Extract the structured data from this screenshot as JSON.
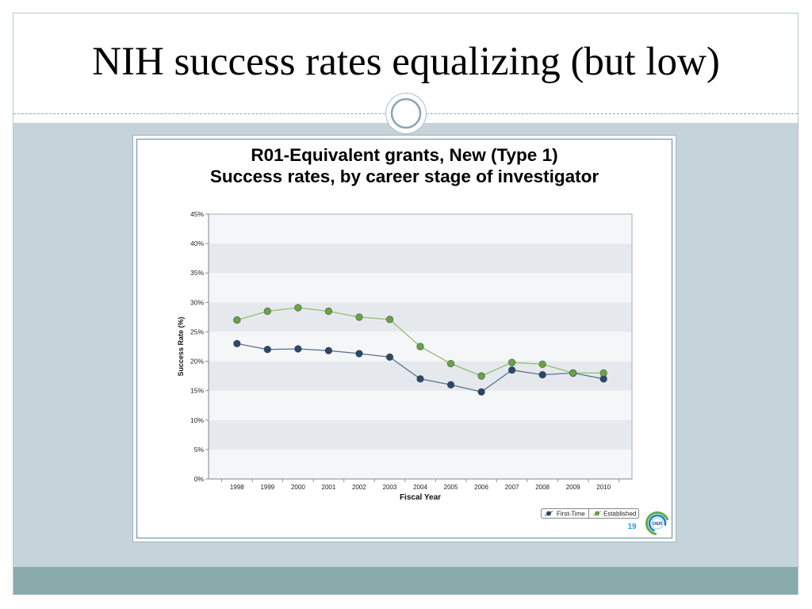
{
  "slide": {
    "title": "NIH success rates equalizing (but low)",
    "page_number": "19",
    "logo_text": "OER",
    "colors": {
      "frame_line": "#b5c7cf",
      "divider": "#8ea8b3",
      "body_background": "#c5d3da",
      "footer_band": "#8aabab",
      "page_number": "#2a9fd6"
    }
  },
  "chart_data": {
    "type": "line",
    "title": "R01-Equivalent grants, New (Type 1)",
    "subtitle": "Success rates, by career stage of investigator",
    "xlabel": "Fiscal Year",
    "ylabel": "Success Rate (%)",
    "categories": [
      "1998",
      "1999",
      "2000",
      "2001",
      "2002",
      "2003",
      "2004",
      "2005",
      "2006",
      "2007",
      "2008",
      "2009",
      "2010"
    ],
    "ylim": [
      0,
      45
    ],
    "y_ticks": [
      0,
      5,
      10,
      15,
      20,
      25,
      30,
      35,
      40,
      45
    ],
    "y_tick_labels": [
      "0%",
      "5%",
      "10%",
      "15%",
      "20%",
      "25%",
      "30%",
      "35%",
      "40%",
      "45%"
    ],
    "series": [
      {
        "name": "First-Time",
        "values": [
          23.0,
          22.0,
          22.1,
          21.8,
          21.3,
          20.7,
          17.0,
          16.0,
          14.8,
          18.5,
          17.7,
          18.0,
          17.0
        ],
        "line_color": "#5c7391",
        "marker_color": "#2e4769"
      },
      {
        "name": "Established",
        "values": [
          27.0,
          28.5,
          29.1,
          28.5,
          27.5,
          27.1,
          22.5,
          19.6,
          17.5,
          19.8,
          19.5,
          18.0,
          18.0
        ],
        "line_color": "#92bf6c",
        "marker_color": "#6aa343"
      }
    ],
    "grid": true,
    "band_colors": [
      "#f5f6f8",
      "#e5e9ed"
    ],
    "legend": "bottom-right"
  }
}
